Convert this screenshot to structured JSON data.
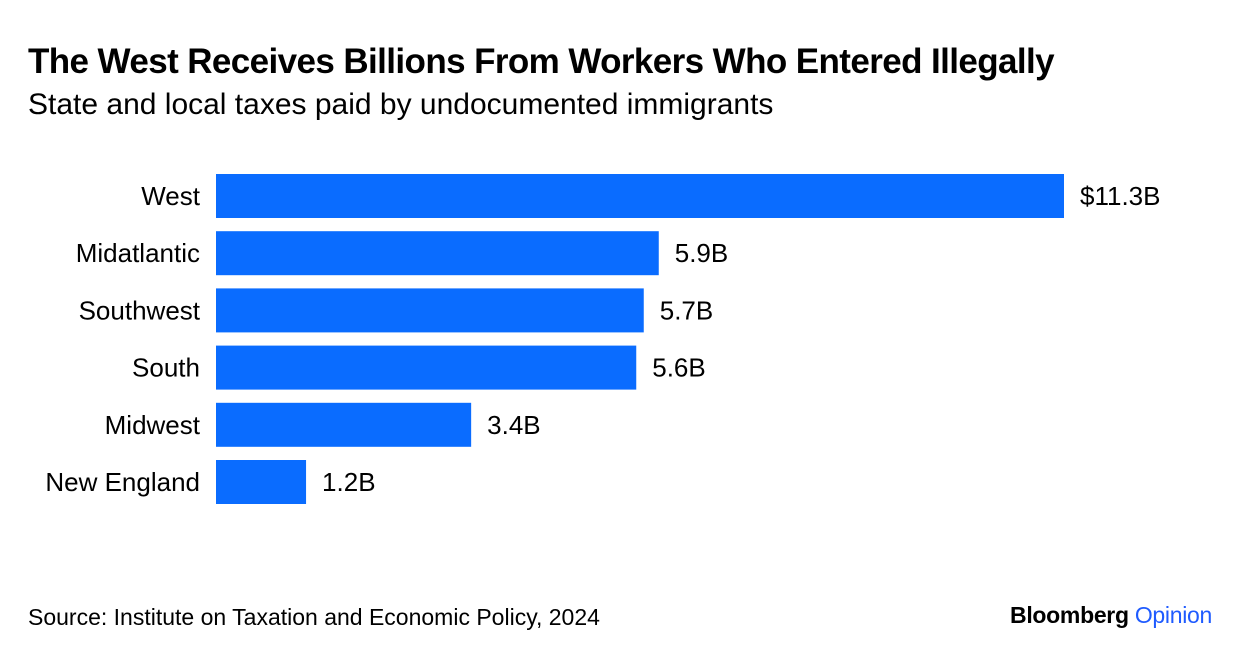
{
  "chart_data": {
    "type": "bar",
    "orientation": "horizontal",
    "title": "The West Receives Billions From Workers Who Entered Illegally",
    "subtitle": "State and local taxes paid by undocumented immigrants",
    "categories": [
      "West",
      "Midatlantic",
      "Southwest",
      "South",
      "Midwest",
      "New England"
    ],
    "values": [
      11.3,
      5.9,
      5.7,
      5.6,
      3.4,
      1.2
    ],
    "value_labels": [
      "$11.3B",
      "5.9B",
      "5.7B",
      "5.6B",
      "3.4B",
      "1.2B"
    ],
    "unit": "B",
    "xlim": [
      0,
      11.3
    ],
    "grid": false,
    "legend": "none",
    "bar_color": "#0A6CFF"
  },
  "source": "Source: Institute on Taxation and Economic Policy, 2024",
  "brand": {
    "name": "Bloomberg",
    "suffix": "Opinion",
    "suffix_color": "#1F5BFF"
  }
}
